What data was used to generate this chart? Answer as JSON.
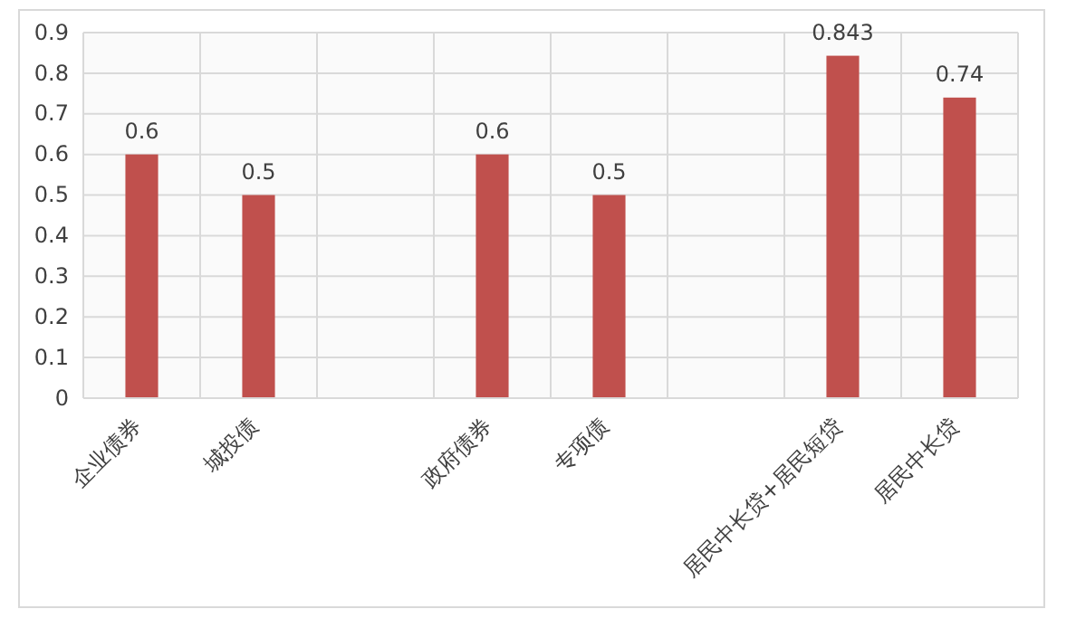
{
  "chart_data": {
    "type": "bar",
    "categories": [
      "企业债券",
      "城投债",
      null,
      "政府债券",
      "专项债",
      null,
      "居民中长贷+居民短贷",
      "居民中长贷"
    ],
    "values": [
      0.6,
      0.5,
      null,
      0.6,
      0.5,
      null,
      0.843,
      0.74
    ],
    "color": "#c0504d",
    "ylim": [
      0,
      0.9
    ],
    "yticks": [
      0,
      0.1,
      0.2,
      0.3,
      0.4,
      0.5,
      0.6,
      0.7,
      0.8,
      0.9
    ],
    "grid": true,
    "data_labels": true
  }
}
